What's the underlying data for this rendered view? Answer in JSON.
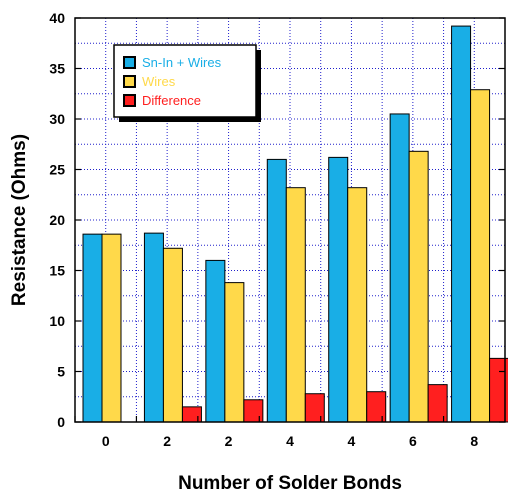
{
  "chart_data": {
    "type": "bar",
    "title": "",
    "xlabel": "Number of Solder Bonds",
    "ylabel": "Resistance (Ohms)",
    "categories": [
      "0",
      "2",
      "2",
      "4",
      "4",
      "6",
      "8"
    ],
    "ylim": [
      0,
      40
    ],
    "yticks": [
      0,
      5,
      10,
      15,
      20,
      25,
      30,
      35,
      40
    ],
    "grid": true,
    "legend_position": "top-left",
    "series": [
      {
        "name": "Sn-In + Wires",
        "color": "#19aee6",
        "values": [
          18.6,
          18.7,
          16.0,
          26.0,
          26.2,
          30.5,
          39.2
        ]
      },
      {
        "name": "Wires",
        "color": "#ffd94a",
        "values": [
          18.6,
          17.2,
          13.8,
          23.2,
          23.2,
          26.8,
          32.9
        ]
      },
      {
        "name": "Difference",
        "color": "#ff1f1f",
        "values": [
          0.0,
          1.5,
          2.2,
          2.8,
          3.0,
          3.7,
          6.3
        ]
      }
    ],
    "grid_color": "#2020cc"
  }
}
